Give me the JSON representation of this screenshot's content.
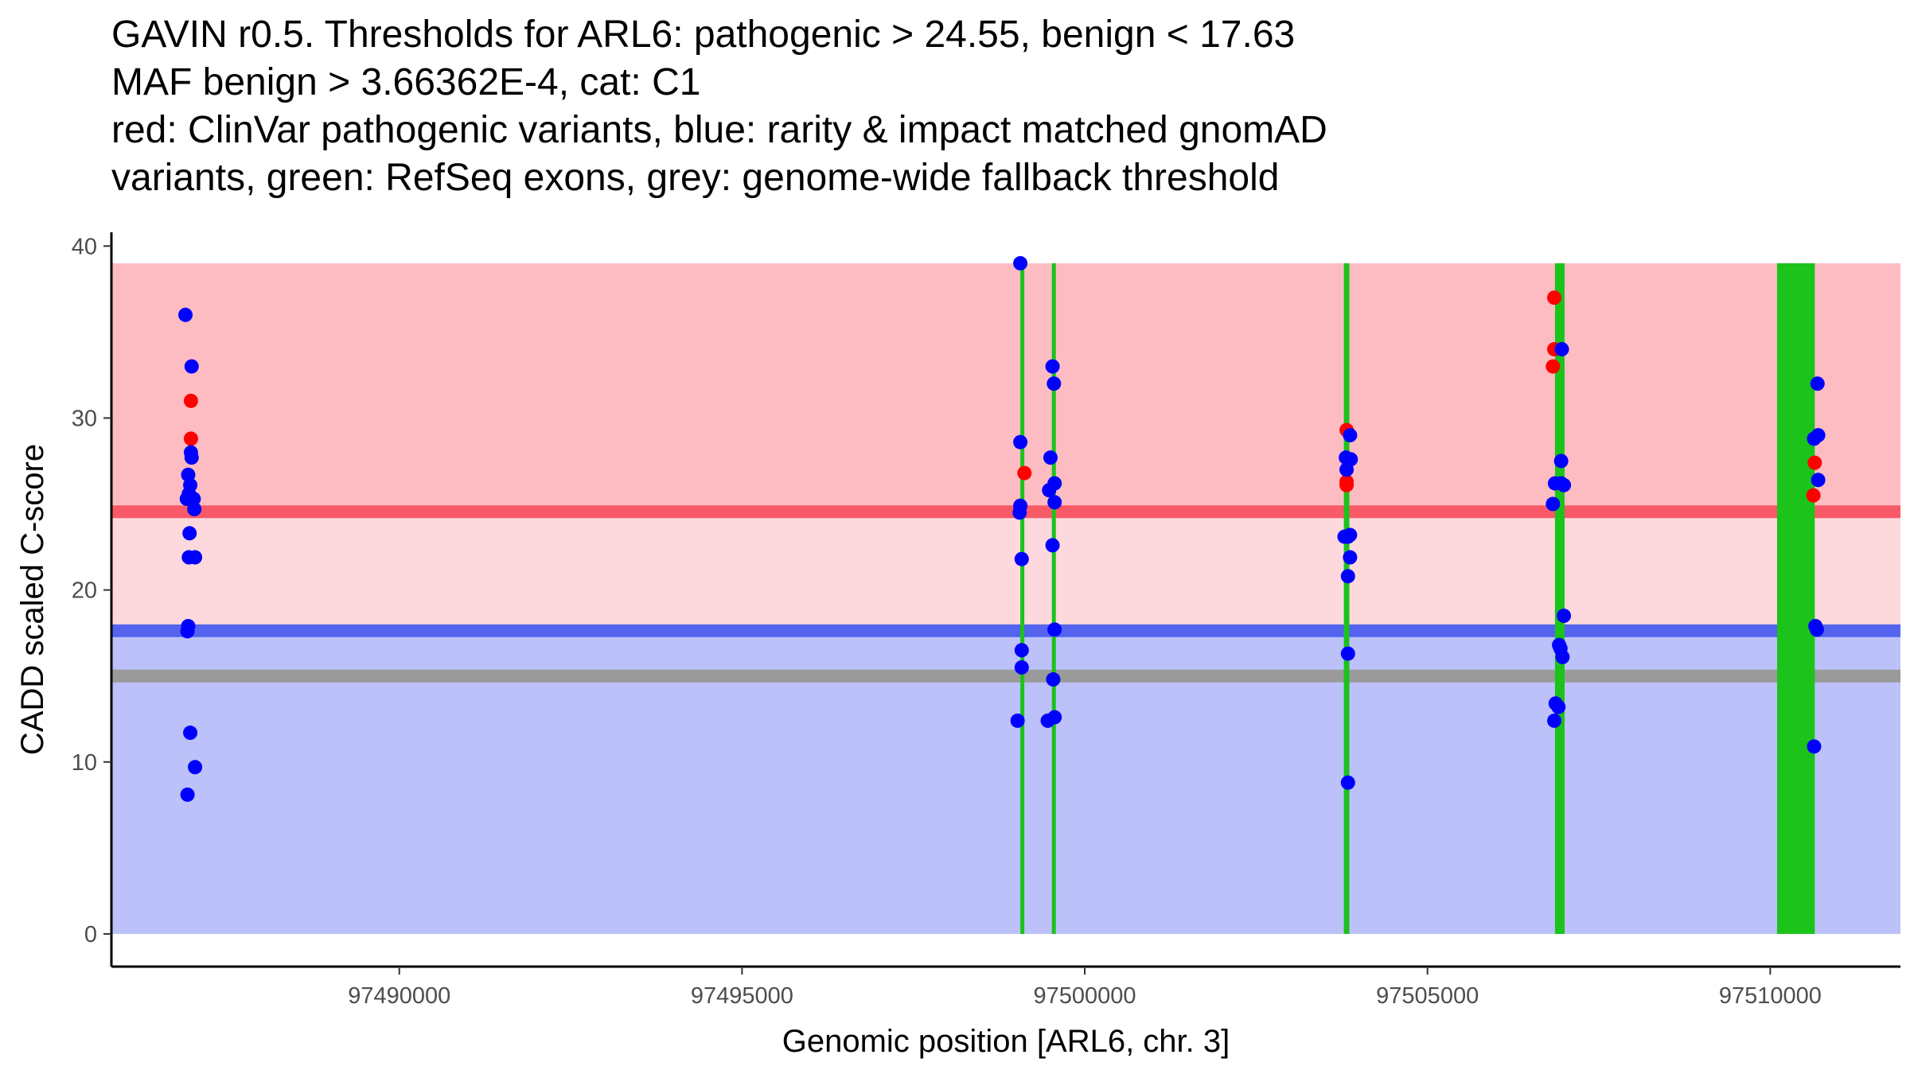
{
  "chart_data": {
    "type": "scatter",
    "title_lines": [
      "GAVIN r0.5. Thresholds for ARL6: pathogenic > 24.55, benign < 17.63",
      "MAF benign > 3.66362E-4, cat: C1",
      "red: ClinVar pathogenic variants, blue: rarity & impact matched gnomAD",
      "variants, green: RefSeq exons, grey: genome-wide fallback threshold"
    ],
    "xlabel": "Genomic position [ARL6, chr. 3]",
    "ylabel": "CADD scaled C-score",
    "xlim": [
      97485800,
      97511900
    ],
    "ylim": [
      -1.9,
      40.8
    ],
    "x_ticks": [
      97490000,
      97495000,
      97500000,
      97505000,
      97510000
    ],
    "x_tick_labels": [
      "97490000",
      "97495000",
      "97500000",
      "97505000",
      "97510000"
    ],
    "y_ticks": [
      0,
      10,
      20,
      30,
      40
    ],
    "y_tick_labels": [
      "0",
      "10",
      "20",
      "30",
      "40"
    ],
    "thresholds": {
      "pathogenic": 24.55,
      "benign": 17.63,
      "fallback": 15.0,
      "max_score": 39.0
    },
    "colors": {
      "pathogenic_band": "#fdbcc2",
      "intermediate_band": "#fdd8dd",
      "benign_band": "#bcc1f9",
      "pathogenic_line": "#f95a68",
      "benign_line": "#5464ee",
      "fallback_line": "#9a9a9a",
      "exon": "#1bc31b",
      "clinvar": "#ff0000",
      "gnomad": "#0000ff"
    },
    "exons": [
      {
        "start": 97499060,
        "end": 97499110
      },
      {
        "start": 97499520,
        "end": 97499570
      },
      {
        "start": 97503780,
        "end": 97503860
      },
      {
        "start": 97506860,
        "end": 97507000
      },
      {
        "start": 97510100,
        "end": 97510650
      }
    ],
    "series": [
      {
        "name": "ClinVar pathogenic variants",
        "color": "#ff0000",
        "points": [
          {
            "x": 97486960,
            "y": 31.0
          },
          {
            "x": 97486960,
            "y": 28.8
          },
          {
            "x": 97499120,
            "y": 26.8
          },
          {
            "x": 97503820,
            "y": 29.3
          },
          {
            "x": 97503820,
            "y": 26.3
          },
          {
            "x": 97503820,
            "y": 26.1
          },
          {
            "x": 97506850,
            "y": 37.0
          },
          {
            "x": 97506850,
            "y": 34.0
          },
          {
            "x": 97506830,
            "y": 33.0
          },
          {
            "x": 97510650,
            "y": 27.4
          },
          {
            "x": 97510630,
            "y": 25.5
          }
        ]
      },
      {
        "name": "rarity & impact matched gnomAD variants",
        "color": "#0000ff",
        "points": [
          {
            "x": 97486880,
            "y": 36.0
          },
          {
            "x": 97486970,
            "y": 33.0
          },
          {
            "x": 97486960,
            "y": 28.0
          },
          {
            "x": 97486970,
            "y": 27.7
          },
          {
            "x": 97486920,
            "y": 26.7
          },
          {
            "x": 97486950,
            "y": 26.1
          },
          {
            "x": 97486930,
            "y": 25.6
          },
          {
            "x": 97486900,
            "y": 25.3
          },
          {
            "x": 97487000,
            "y": 25.3
          },
          {
            "x": 97487010,
            "y": 24.7
          },
          {
            "x": 97486940,
            "y": 23.3
          },
          {
            "x": 97486930,
            "y": 21.9
          },
          {
            "x": 97487020,
            "y": 21.9
          },
          {
            "x": 97486920,
            "y": 17.9
          },
          {
            "x": 97486910,
            "y": 17.6
          },
          {
            "x": 97486950,
            "y": 11.7
          },
          {
            "x": 97487020,
            "y": 9.7
          },
          {
            "x": 97486910,
            "y": 8.1
          },
          {
            "x": 97499060,
            "y": 39.0
          },
          {
            "x": 97499060,
            "y": 28.6
          },
          {
            "x": 97499060,
            "y": 24.9
          },
          {
            "x": 97499050,
            "y": 24.5
          },
          {
            "x": 97499080,
            "y": 21.8
          },
          {
            "x": 97499080,
            "y": 16.5
          },
          {
            "x": 97499080,
            "y": 15.5
          },
          {
            "x": 97499020,
            "y": 12.4
          },
          {
            "x": 97499530,
            "y": 33.0
          },
          {
            "x": 97499550,
            "y": 32.0
          },
          {
            "x": 97499500,
            "y": 27.7
          },
          {
            "x": 97499560,
            "y": 26.2
          },
          {
            "x": 97499480,
            "y": 25.8
          },
          {
            "x": 97499560,
            "y": 25.1
          },
          {
            "x": 97499530,
            "y": 22.6
          },
          {
            "x": 97499560,
            "y": 17.7
          },
          {
            "x": 97499540,
            "y": 14.8
          },
          {
            "x": 97499560,
            "y": 12.6
          },
          {
            "x": 97499460,
            "y": 12.4
          },
          {
            "x": 97503870,
            "y": 29.0
          },
          {
            "x": 97503810,
            "y": 27.7
          },
          {
            "x": 97503880,
            "y": 27.6
          },
          {
            "x": 97503820,
            "y": 27.0
          },
          {
            "x": 97503840,
            "y": 23.1
          },
          {
            "x": 97503870,
            "y": 23.2
          },
          {
            "x": 97503790,
            "y": 23.1
          },
          {
            "x": 97503870,
            "y": 21.9
          },
          {
            "x": 97503840,
            "y": 20.8
          },
          {
            "x": 97503840,
            "y": 16.3
          },
          {
            "x": 97503840,
            "y": 8.8
          },
          {
            "x": 97506960,
            "y": 34.0
          },
          {
            "x": 97506950,
            "y": 27.5
          },
          {
            "x": 97506860,
            "y": 26.2
          },
          {
            "x": 97506950,
            "y": 26.2
          },
          {
            "x": 97506990,
            "y": 26.1
          },
          {
            "x": 97506830,
            "y": 25.0
          },
          {
            "x": 97506990,
            "y": 18.5
          },
          {
            "x": 97506920,
            "y": 16.8
          },
          {
            "x": 97506940,
            "y": 16.6
          },
          {
            "x": 97506970,
            "y": 16.1
          },
          {
            "x": 97506870,
            "y": 13.4
          },
          {
            "x": 97506910,
            "y": 13.2
          },
          {
            "x": 97506850,
            "y": 12.4
          },
          {
            "x": 97510690,
            "y": 32.0
          },
          {
            "x": 97510700,
            "y": 29.0
          },
          {
            "x": 97510640,
            "y": 28.8
          },
          {
            "x": 97510700,
            "y": 26.4
          },
          {
            "x": 97510660,
            "y": 17.9
          },
          {
            "x": 97510680,
            "y": 17.7
          },
          {
            "x": 97510640,
            "y": 10.9
          }
        ]
      }
    ]
  }
}
